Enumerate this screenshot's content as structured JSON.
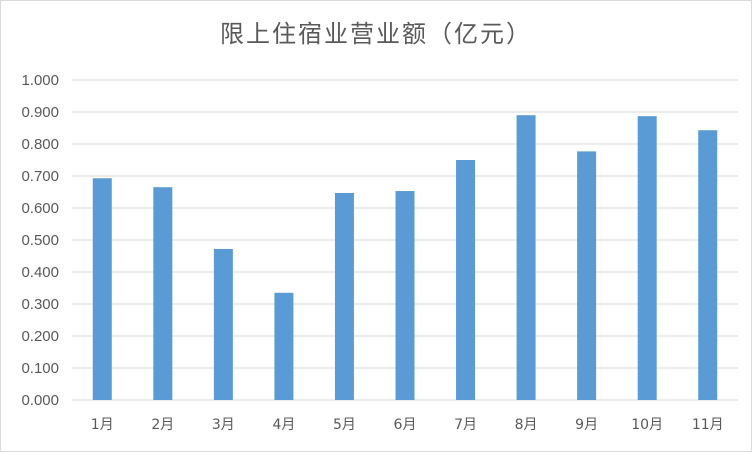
{
  "chart_data": {
    "type": "bar",
    "title": "限上住宿业营业额（亿元）",
    "categories": [
      "1月",
      "2月",
      "3月",
      "4月",
      "5月",
      "6月",
      "7月",
      "8月",
      "9月",
      "10月",
      "11月"
    ],
    "values": [
      0.693,
      0.665,
      0.472,
      0.335,
      0.647,
      0.653,
      0.75,
      0.89,
      0.777,
      0.887,
      0.843
    ],
    "ylim": [
      0,
      1.0
    ],
    "yticks": [
      "0.000",
      "0.100",
      "0.200",
      "0.300",
      "0.400",
      "0.500",
      "0.600",
      "0.700",
      "0.800",
      "0.900",
      "1.000"
    ],
    "xlabel": "",
    "ylabel": "",
    "grid": true,
    "bar_color": "#5b9bd5",
    "grid_color": "#d9d9d9"
  }
}
